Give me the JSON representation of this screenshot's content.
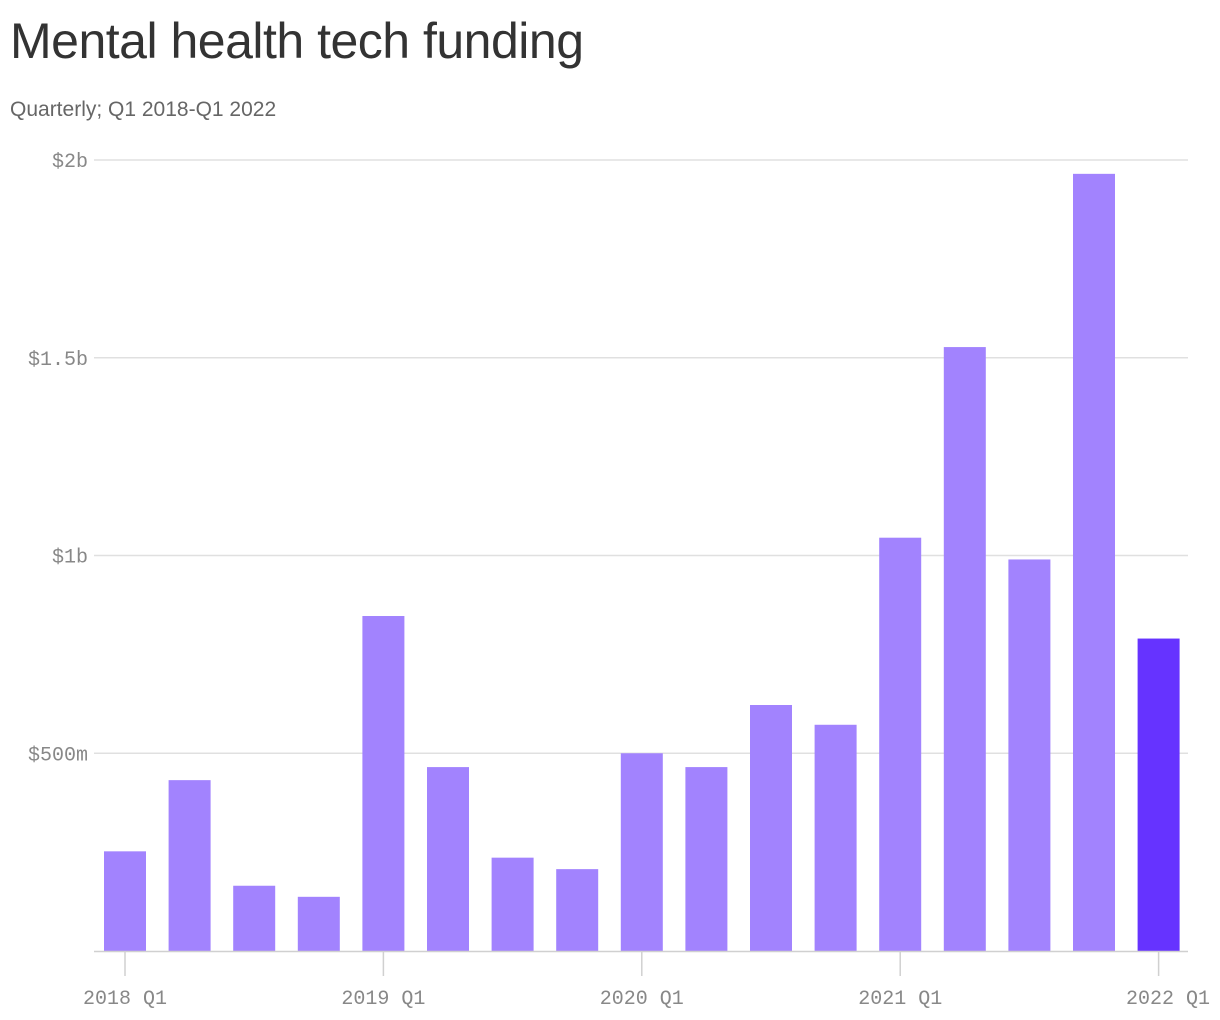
{
  "title": "Mental health tech funding",
  "subtitle": "Quarterly; Q1 2018-Q1 2022",
  "colors": {
    "bar": "#a283fe",
    "highlight": "#6633ff",
    "grid": "#e0e0e0",
    "axis": "#d0d0d0",
    "tick_label": "#888888"
  },
  "chart_data": {
    "type": "bar",
    "title": "Mental health tech funding",
    "subtitle": "Quarterly; Q1 2018-Q1 2022",
    "xlabel": "",
    "ylabel": "",
    "unit": "millions USD",
    "categories": [
      "2018 Q1",
      "2018 Q2",
      "2018 Q3",
      "2018 Q4",
      "2019 Q1",
      "2019 Q2",
      "2019 Q3",
      "2019 Q4",
      "2020 Q1",
      "2020 Q2",
      "2020 Q3",
      "2020 Q4",
      "2021 Q1",
      "2021 Q2",
      "2021 Q3",
      "2021 Q4",
      "2022 Q1"
    ],
    "values": [
      252,
      432,
      165,
      137,
      847,
      465,
      236,
      207,
      500,
      465,
      622,
      572,
      1045,
      1527,
      990,
      1965,
      790
    ],
    "highlight_index": 16,
    "ylim": [
      0,
      2000
    ],
    "yticks": [
      {
        "value": 500,
        "label": "$500m"
      },
      {
        "value": 1000,
        "label": "$1b"
      },
      {
        "value": 1500,
        "label": "$1.5b"
      },
      {
        "value": 2000,
        "label": "$2b"
      }
    ],
    "xticks": [
      {
        "index": 0,
        "label": "2018 Q1"
      },
      {
        "index": 4,
        "label": "2019 Q1"
      },
      {
        "index": 8,
        "label": "2020 Q1"
      },
      {
        "index": 12,
        "label": "2021 Q1"
      },
      {
        "index": 16,
        "label": "2022 Q1"
      }
    ],
    "grid": true
  }
}
